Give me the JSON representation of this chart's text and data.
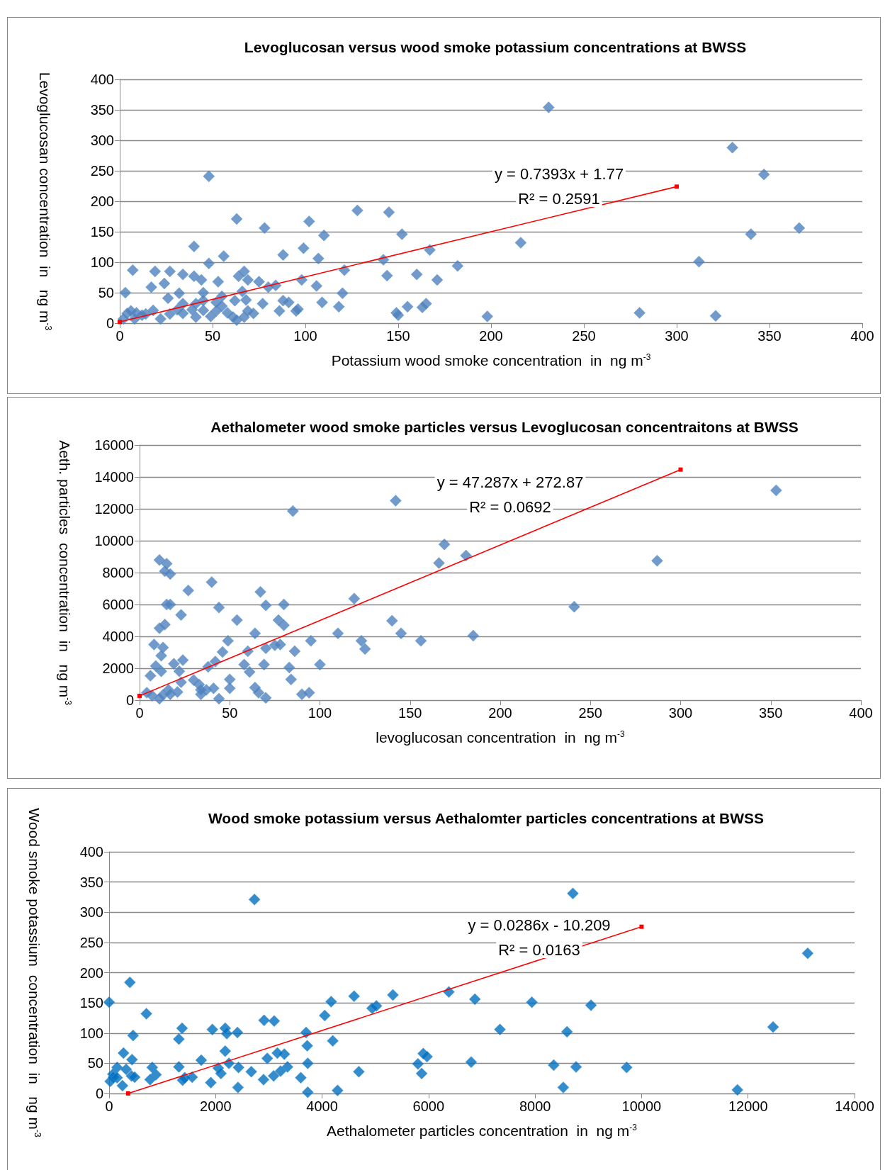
{
  "chart_data": [
    {
      "type": "scatter",
      "title": "Levoglucosan versus wood smoke potassium concentrations at BWSS",
      "xlabel": "Potassium wood smoke concentration  in  ng m$^{-3}$",
      "ylabel": "Levoglucosan concentration  in   ng m$^{-3}$",
      "xlim": [
        0,
        400
      ],
      "ylim": [
        0,
        400
      ],
      "xticks": [
        0,
        50,
        100,
        150,
        200,
        250,
        300,
        350,
        400
      ],
      "yticks": [
        0,
        50,
        100,
        150,
        200,
        250,
        300,
        350,
        400
      ],
      "grid": "y",
      "marker": "diamond",
      "annotations": [
        "y = 0.7393x + 1.77",
        "R² = 0.2591"
      ],
      "series": [
        {
          "color": "#4f81bd",
          "x": [
            231,
            330,
            347,
            366,
            340,
            312,
            280,
            321,
            198,
            216,
            182,
            171,
            167,
            160,
            152,
            145,
            142,
            144,
            128,
            121,
            120,
            118,
            110,
            107,
            106,
            109,
            102,
            99,
            98,
            95,
            88,
            78,
            63,
            48,
            56,
            40,
            48,
            3,
            7,
            19,
            17,
            27,
            24,
            26,
            32,
            34,
            40,
            44,
            45,
            53,
            55,
            67,
            64,
            66,
            69,
            75,
            77,
            84,
            80,
            88,
            91,
            96,
            86,
            4,
            6,
            9,
            14,
            18,
            22,
            27,
            31,
            34,
            39,
            41,
            45,
            49,
            52,
            55,
            58,
            61,
            63,
            67,
            69,
            72,
            41,
            34,
            45,
            62,
            52,
            149,
            150,
            155,
            163,
            165,
            68,
            2,
            8,
            12
          ],
          "values": [
            354,
            288,
            244,
            156,
            146,
            101,
            17,
            12,
            11,
            132,
            94,
            71,
            120,
            80,
            146,
            182,
            104,
            78,
            185,
            87,
            49,
            27,
            144,
            106,
            61,
            34,
            167,
            123,
            71,
            20,
            112,
            156,
            171,
            241,
            110,
            126,
            98,
            50,
            87,
            85,
            59,
            85,
            65,
            41,
            49,
            80,
            77,
            71,
            50,
            68,
            44,
            85,
            77,
            52,
            71,
            68,
            32,
            62,
            59,
            37,
            34,
            23,
            20,
            16,
            20,
            17,
            15,
            21,
            7,
            15,
            22,
            16,
            22,
            10,
            21,
            11,
            20,
            28,
            17,
            10,
            5,
            10,
            20,
            16,
            32,
            32,
            37,
            37,
            34,
            17,
            13,
            27,
            26,
            32,
            38,
            7,
            7,
            13
          ]
        },
        {
          "type": "line",
          "color": "#ff0000",
          "marker": "square",
          "x": [
            0,
            300
          ],
          "values": [
            2,
            224
          ]
        }
      ]
    },
    {
      "type": "scatter",
      "title": "Aethalometer wood smoke particles versus Levoglucosan concentraitons at BWSS",
      "xlabel": "levoglucosan concentration  in  ng m$^{-3}$",
      "ylabel": "Aeth. particles  concentration  in   ng m$^{-3}$",
      "xlim": [
        0,
        400
      ],
      "ylim": [
        0,
        16000
      ],
      "xticks": [
        0,
        50,
        100,
        150,
        200,
        250,
        300,
        350,
        400
      ],
      "yticks": [
        0,
        2000,
        4000,
        6000,
        8000,
        10000,
        12000,
        14000,
        16000
      ],
      "grid": "y",
      "marker": "diamond",
      "annotations": [
        "y = 47.287x + 272.87",
        "R² = 0.0692"
      ],
      "series": [
        {
          "color": "#4f81bd",
          "x": [
            353,
            287,
            241,
            185,
            156,
            145,
            140,
            142,
            85,
            169,
            181,
            166,
            119,
            110,
            123,
            125,
            11,
            15,
            14,
            17,
            27,
            40,
            23,
            15,
            17,
            44,
            54,
            67,
            70,
            80,
            77,
            80,
            64,
            60,
            49,
            46,
            70,
            75,
            78,
            86,
            95,
            100,
            83,
            84,
            69,
            58,
            61,
            50,
            42,
            38,
            33,
            30,
            23,
            24,
            19,
            22,
            12,
            8,
            13,
            12,
            9,
            11,
            14,
            6,
            4,
            7,
            11,
            13,
            16,
            17,
            21,
            34,
            37,
            41,
            44,
            34,
            64,
            66,
            70,
            90,
            94,
            50
          ],
          "values": [
            13160,
            8740,
            5860,
            4050,
            3720,
            4190,
            4980,
            12510,
            11860,
            9770,
            9070,
            8600,
            6370,
            4190,
            3720,
            3210,
            8790,
            8560,
            8090,
            7910,
            6880,
            7400,
            5350,
            6000,
            6000,
            5810,
            5020,
            6790,
            5950,
            6000,
            5020,
            4700,
            4190,
            3070,
            3720,
            3020,
            3260,
            3440,
            3490,
            3070,
            3720,
            2230,
            2050,
            1300,
            2230,
            2230,
            1770,
            1300,
            2420,
            2090,
            980,
            1260,
            1120,
            2510,
            2280,
            1810,
            1810,
            3490,
            3300,
            2790,
            2140,
            4510,
            4740,
            1530,
            470,
            280,
            90,
            330,
            650,
            370,
            510,
            370,
            650,
            740,
            90,
            650,
            790,
            470,
            140,
            370,
            470,
            740
          ]
        },
        {
          "type": "line",
          "color": "#ff0000",
          "marker": "square",
          "x": [
            0,
            300
          ],
          "values": [
            270,
            14460
          ]
        }
      ]
    },
    {
      "type": "scatter",
      "title": "Wood smoke potassium versus Aethalomter particles concentrations at BWSS",
      "xlabel": "Aethalometer particles concentration  in  ng m$^{-3}$",
      "ylabel": "Wood smoke potassium  concentration  in   ng m$^{-3}$",
      "xlim": [
        0,
        14000
      ],
      "ylim": [
        0,
        400
      ],
      "xticks": [
        0,
        2000,
        4000,
        6000,
        8000,
        10000,
        12000,
        14000
      ],
      "yticks": [
        0,
        50,
        100,
        150,
        200,
        250,
        300,
        350,
        400
      ],
      "grid": "y",
      "marker": "diamond",
      "annotations": [
        "y = 0.0286x - 10.209",
        "R² = 0.0163"
      ],
      "series": [
        {
          "color": "#0070c0",
          "x": [
            13120,
            12470,
            11800,
            9720,
            9050,
            8710,
            8600,
            8770,
            8530,
            8350,
            7940,
            7340,
            6870,
            6800,
            6380,
            5900,
            5800,
            5870,
            5970,
            5330,
            5020,
            4940,
            4600,
            4690,
            4290,
            4200,
            4170,
            4050,
            3730,
            3720,
            3700,
            3730,
            3600,
            3350,
            3290,
            3220,
            3160,
            3090,
            2970,
            3100,
            2910,
            2900,
            2730,
            2670,
            2410,
            2420,
            2430,
            2250,
            2180,
            2210,
            2180,
            2050,
            2100,
            1940,
            1910,
            1730,
            1560,
            1420,
            1370,
            1310,
            1310,
            1380,
            810,
            880,
            770,
            700,
            450,
            430,
            390,
            420,
            320,
            270,
            250,
            150,
            70,
            80,
            0,
            20,
            150,
            480
          ],
          "values": [
            232,
            110,
            6,
            43,
            146,
            331,
            102,
            44,
            10,
            47,
            151,
            106,
            156,
            52,
            168,
            66,
            49,
            33,
            61,
            163,
            145,
            141,
            161,
            36,
            5,
            87,
            152,
            129,
            50,
            79,
            101,
            2,
            26,
            44,
            65,
            37,
            67,
            29,
            58,
            120,
            121,
            23,
            321,
            36,
            101,
            10,
            43,
            50,
            70,
            99,
            108,
            42,
            33,
            106,
            18,
            55,
            27,
            26,
            108,
            90,
            44,
            22,
            43,
            31,
            23,
            132,
            96,
            56,
            184,
            29,
            40,
            67,
            13,
            43,
            32,
            27,
            151,
            20,
            26,
            27
          ]
        },
        {
          "type": "line",
          "color": "#ff0000",
          "marker": "square",
          "x": [
            357,
            10000
          ],
          "values": [
            0,
            276
          ]
        }
      ]
    }
  ]
}
